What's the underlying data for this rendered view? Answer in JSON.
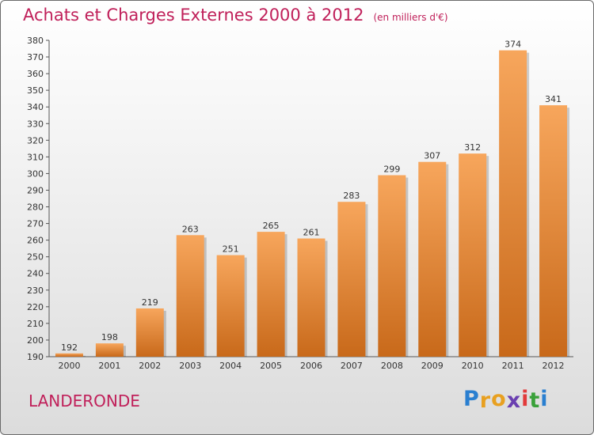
{
  "header": {
    "title": "Achats et Charges Externes 2000 à 2012",
    "unit": "(en milliers d'€)"
  },
  "footer": {
    "commune": "LANDERONDE",
    "logo_letters": [
      "P",
      "r",
      "o",
      "x",
      "i",
      "t",
      "i"
    ],
    "logo_colors": [
      "#2a7fd0",
      "#e8a020",
      "#e8a020",
      "#6a3fb0",
      "#e23a3a",
      "#3aa13a",
      "#2a7fd0"
    ]
  },
  "colors": {
    "bar_top": "#f7a65c",
    "bar_bottom": "#c8691a",
    "title": "#c0205a"
  },
  "chart_data": {
    "type": "bar",
    "categories": [
      "2000",
      "2001",
      "2002",
      "2003",
      "2004",
      "2005",
      "2006",
      "2007",
      "2008",
      "2009",
      "2010",
      "2011",
      "2012"
    ],
    "values": [
      192,
      198,
      219,
      263,
      251,
      265,
      261,
      283,
      299,
      307,
      312,
      374,
      341
    ],
    "ylim": [
      190,
      380
    ],
    "yticks": [
      190,
      200,
      210,
      220,
      230,
      240,
      250,
      260,
      270,
      280,
      290,
      300,
      310,
      320,
      330,
      340,
      350,
      360,
      370,
      380
    ],
    "grid": false
  }
}
